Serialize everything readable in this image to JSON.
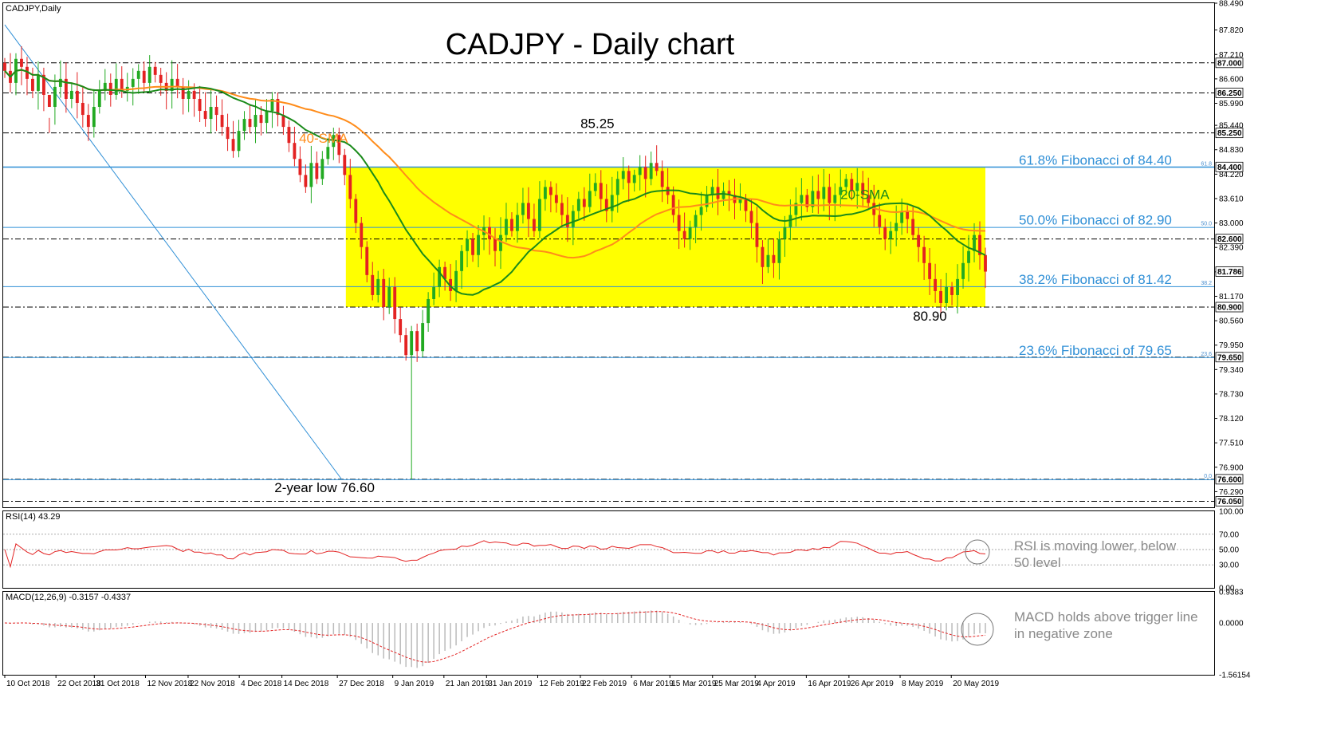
{
  "chart_data": {
    "type": "candlestick",
    "symbol_label": "CADJPY,Daily",
    "title": "CADJPY - Daily chart",
    "y_range": [
      75.9,
      88.49
    ],
    "price_ticks": [
      "88.490",
      "87.820",
      "87.210",
      "86.600",
      "85.990",
      "85.440",
      "84.830",
      "84.220",
      "83.610",
      "83.000",
      "82.390",
      "81.780",
      "81.170",
      "80.560",
      "79.950",
      "79.340",
      "78.730",
      "78.120",
      "77.510",
      "76.900",
      "76.290"
    ],
    "level_labels": [
      {
        "value": 87.0,
        "text": "87.000",
        "style": "dashdot"
      },
      {
        "value": 86.25,
        "text": "86.250",
        "style": "dashdot"
      },
      {
        "value": 85.25,
        "text": "85.250",
        "style": "dashdot"
      },
      {
        "value": 84.4,
        "text": "84.400",
        "style": "fib"
      },
      {
        "value": 82.6,
        "text": "82.600",
        "style": "dashdot"
      },
      {
        "value": 81.786,
        "text": "81.786",
        "style": "current"
      },
      {
        "value": 80.9,
        "text": "80.900",
        "style": "dashdot"
      },
      {
        "value": 79.65,
        "text": "79.650",
        "style": "dashdot"
      },
      {
        "value": 76.6,
        "text": "76.600",
        "style": "dashdot"
      },
      {
        "value": 76.05,
        "text": "76.050",
        "style": "dashdot"
      }
    ],
    "fibonacci": [
      {
        "value": 84.4,
        "ratio_label": "61.8",
        "text": "61.8% Fibonacci of 84.40"
      },
      {
        "value": 82.9,
        "ratio_label": "50.0",
        "text": "50.0% Fibonacci of 82.90"
      },
      {
        "value": 81.42,
        "ratio_label": "38.2",
        "text": "38.2% Fibonacci of 81.42"
      },
      {
        "value": 79.65,
        "ratio_label": "23.6",
        "text": "23.6% Fibonacci of 79.65"
      },
      {
        "value": 76.6,
        "ratio_label": "0.0",
        "text": ""
      }
    ],
    "annotations": {
      "high": "85.25",
      "support": "80.90",
      "low": "2-year low 76.60",
      "sma40": "40-SMA",
      "sma20": "20-SMA"
    },
    "range_box": {
      "from_date": "2018-12-29",
      "to_date": "2019-05-28",
      "top": 84.4,
      "bottom": 80.9
    },
    "date_labels": [
      "10 Oct 2018",
      "22 Oct 2018",
      "31 Oct 2018",
      "12 Nov 2018",
      "22 Nov 2018",
      "4 Dec 2018",
      "14 Dec 2018",
      "27 Dec 2018",
      "9 Jan 2019",
      "21 Jan 2019",
      "31 Jan 2019",
      "12 Feb 2019",
      "22 Feb 2019",
      "6 Mar 2019",
      "15 Mar 2019",
      "25 Mar 2019",
      "4 Apr 2019",
      "16 Apr 2019",
      "26 Apr 2019",
      "8 May 2019",
      "20 May 2019"
    ],
    "closes": [
      86.8,
      86.5,
      87.1,
      86.9,
      86.6,
      86.3,
      86.7,
      86.2,
      85.9,
      86.4,
      86.6,
      86.1,
      86.3,
      86.0,
      85.7,
      85.4,
      85.9,
      86.3,
      86.5,
      86.2,
      86.6,
      86.3,
      86.4,
      86.6,
      86.8,
      86.5,
      86.9,
      86.7,
      86.5,
      86.3,
      86.6,
      86.4,
      86.1,
      86.3,
      86.1,
      85.8,
      85.6,
      85.9,
      85.7,
      85.4,
      85.1,
      84.8,
      85.3,
      85.6,
      85.4,
      85.7,
      85.5,
      85.8,
      86.1,
      85.7,
      85.4,
      85.0,
      84.6,
      84.2,
      83.9,
      84.5,
      84.1,
      84.6,
      84.9,
      85.2,
      84.7,
      84.2,
      83.6,
      83.0,
      82.4,
      81.7,
      81.2,
      81.6,
      80.9,
      81.4,
      80.6,
      80.2,
      79.7,
      80.3,
      79.8,
      80.5,
      81.1,
      81.4,
      81.9,
      81.6,
      81.3,
      81.8,
      82.3,
      82.6,
      82.2,
      82.7,
      82.9,
      82.6,
      82.3,
      82.7,
      83.1,
      82.8,
      83.2,
      83.5,
      83.1,
      82.8,
      83.6,
      83.9,
      83.7,
      83.5,
      83.2,
      82.9,
      83.3,
      83.6,
      83.4,
      83.8,
      84.0,
      83.6,
      83.3,
      83.7,
      84.1,
      84.3,
      84.0,
      84.2,
      84.4,
      84.1,
      84.5,
      84.3,
      83.9,
      83.7,
      83.2,
      82.8,
      82.6,
      82.9,
      83.2,
      83.4,
      83.7,
      83.9,
      83.6,
      83.8,
      83.7,
      83.5,
      83.6,
      83.3,
      83.0,
      82.4,
      81.9,
      82.2,
      82.0,
      82.6,
      82.9,
      83.2,
      83.5,
      83.7,
      83.4,
      83.8,
      83.6,
      83.9,
      83.5,
      83.7,
      83.9,
      84.1,
      83.8,
      84.0,
      83.7,
      83.5,
      83.2,
      82.9,
      82.6,
      82.8,
      83.0,
      83.3,
      83.1,
      82.7,
      82.4,
      82.0,
      81.6,
      81.3,
      81.0,
      81.4,
      81.2,
      81.6,
      82.0,
      82.3,
      82.7,
      82.2,
      81.786
    ],
    "rsi": {
      "label": "RSI(14) 43.29",
      "ticks": [
        "100.00",
        "70.00",
        "50.00",
        "30.00",
        "0.00"
      ],
      "ylim": [
        0,
        100
      ]
    },
    "macd": {
      "label": "MACD(12,26,9) -0.3157 -0.4337",
      "ticks": [
        "0.9383",
        "0.0000",
        "-1.56154"
      ],
      "ylim": [
        -1.56154,
        0.9383
      ]
    },
    "notes": {
      "rsi": [
        "RSI is moving lower, below",
        "50 level"
      ],
      "macd": [
        "MACD holds above trigger line",
        "in negative zone"
      ]
    }
  },
  "colors": {
    "bull": "#22aa22",
    "bear": "#e32222",
    "sma20": "#1a8a1a",
    "sma40": "#ff8c1a",
    "fib": "#2f8fd6",
    "box": "#ffff00",
    "rsi": "#e32222",
    "macd_signal": "#e32222",
    "macd_hist": "#bbbbbb"
  }
}
